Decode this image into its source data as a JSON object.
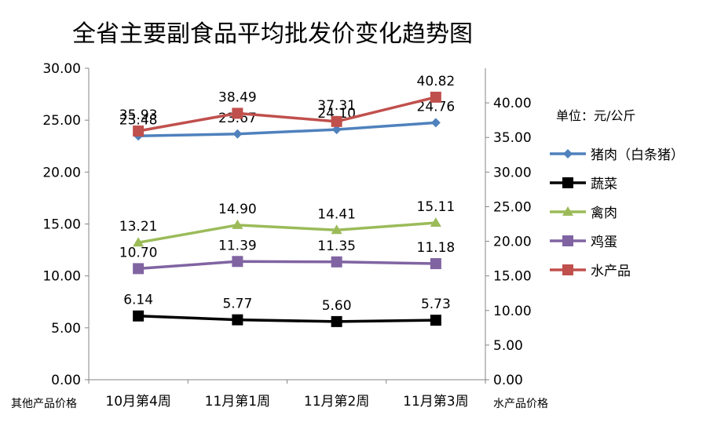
{
  "chart_data": {
    "type": "line",
    "title": "全省主要副食品平均批发价变化趋势图",
    "categories": [
      "10月第4周",
      "11月第1周",
      "11月第2周",
      "11月第3周"
    ],
    "left_axis": {
      "label": "其他产品价格",
      "ylim": [
        0,
        30
      ],
      "ticks": [
        "0.00",
        "5.00",
        "10.00",
        "15.00",
        "20.00",
        "25.00",
        "30.00"
      ]
    },
    "right_axis": {
      "label": "水产品价格",
      "ylim": [
        0,
        45
      ],
      "ticks": [
        "0.00",
        "5.00",
        "10.00",
        "15.00",
        "20.00",
        "25.00",
        "30.00",
        "35.00",
        "40.00"
      ]
    },
    "unit_label": "单位：元/公斤",
    "legend_placement": "right",
    "grid": false,
    "series": [
      {
        "name": "猪肉（白条猪）",
        "axis": "left",
        "color": "#4f81bd",
        "marker": "diamond",
        "values": [
          23.48,
          23.67,
          24.1,
          24.76
        ],
        "labels": [
          "23.48",
          "23.67",
          "24.10",
          "24.76"
        ]
      },
      {
        "name": "蔬菜",
        "axis": "left",
        "color": "#000000",
        "marker": "square",
        "values": [
          6.14,
          5.77,
          5.6,
          5.73
        ],
        "labels": [
          "6.14",
          "5.77",
          "5.60",
          "5.73"
        ]
      },
      {
        "name": "禽肉",
        "axis": "left",
        "color": "#9bbb59",
        "marker": "triangle",
        "values": [
          13.21,
          14.9,
          14.41,
          15.11
        ],
        "labels": [
          "13.21",
          "14.90",
          "14.41",
          "15.11"
        ]
      },
      {
        "name": "鸡蛋",
        "axis": "left",
        "color": "#8064a2",
        "marker": "square",
        "values": [
          10.7,
          11.39,
          11.35,
          11.18
        ],
        "labels": [
          "10.70",
          "11.39",
          "11.35",
          "11.18"
        ]
      },
      {
        "name": "水产品",
        "axis": "right",
        "color": "#c0504d",
        "marker": "square",
        "values": [
          35.93,
          38.49,
          37.31,
          40.82
        ],
        "labels": [
          "35.93",
          "38.49",
          "37.31",
          "40.82"
        ]
      }
    ]
  }
}
